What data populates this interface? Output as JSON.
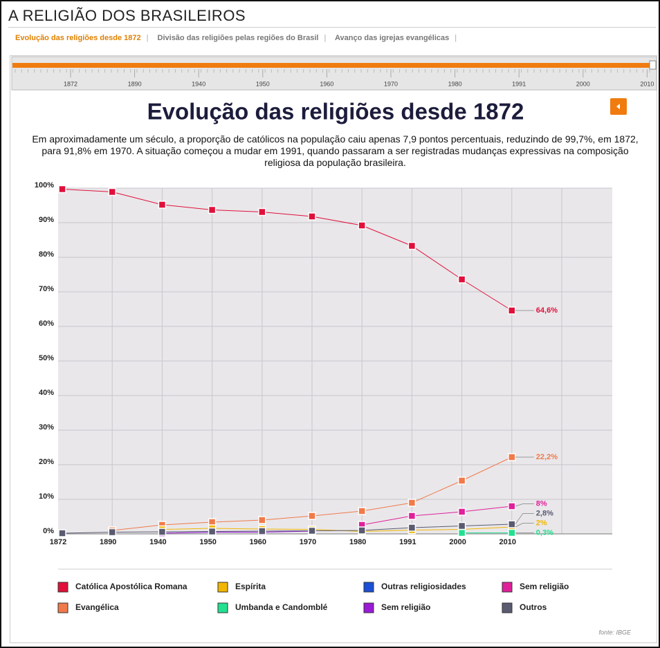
{
  "header": {
    "title": "A RELIGIÃO DOS BRASILEIROS",
    "tabs": [
      "Evolução das religiões desde 1872",
      "Divisão das religiões pelas regiões do Brasil",
      "Avanço das igrejas evangélicas"
    ]
  },
  "timeline": {
    "labels": [
      "1872",
      "1890",
      "1940",
      "1950",
      "1960",
      "1970",
      "1980",
      "1991",
      "2000",
      "2010"
    ]
  },
  "chart_data": {
    "type": "line",
    "title": "Evolução das religiões desde 1872",
    "subtitle": "Em aproximadamente um século, a proporção de católicos na população caiu apenas 7,9 pontos percentuais, reduzindo de 99,7%, em 1872, para 91,8% em 1970. A situação começou a mudar em 1991, quando passaram a ser registradas mudanças expressivas na composição religiosa da população brasileira.",
    "categories": [
      "1872",
      "1890",
      "1940",
      "1950",
      "1960",
      "1970",
      "1980",
      "1991",
      "2000",
      "2010"
    ],
    "ylim": [
      0,
      100
    ],
    "yticks": [
      {
        "value": 0,
        "label": "0%"
      },
      {
        "value": 10,
        "label": "10%"
      },
      {
        "value": 20,
        "label": "20%"
      },
      {
        "value": 30,
        "label": "30%"
      },
      {
        "value": 40,
        "label": "40%"
      },
      {
        "value": 50,
        "label": "50%"
      },
      {
        "value": 60,
        "label": "60%"
      },
      {
        "value": 70,
        "label": "70%"
      },
      {
        "value": 80,
        "label": "80%"
      },
      {
        "value": 90,
        "label": "90%"
      },
      {
        "value": 100,
        "label": "100%"
      }
    ],
    "grid": true,
    "series": [
      {
        "name": "Católica Apostólica Romana",
        "color": "#e0103a",
        "values": [
          99.7,
          98.9,
          95.2,
          93.7,
          93.1,
          91.8,
          89.2,
          83.3,
          73.6,
          64.6
        ],
        "value_labels": [
          null,
          null,
          null,
          null,
          null,
          null,
          null,
          null,
          null,
          "64,6%"
        ]
      },
      {
        "name": "Evangélica",
        "color": "#f07a4a",
        "values": [
          null,
          1.0,
          2.6,
          3.4,
          4.0,
          5.2,
          6.6,
          9.0,
          15.4,
          22.2
        ],
        "value_labels": [
          null,
          null,
          null,
          null,
          null,
          null,
          null,
          null,
          null,
          "22,2%"
        ]
      },
      {
        "name": "Espírita",
        "color": "#f2b600",
        "values": [
          null,
          null,
          1.3,
          1.6,
          1.4,
          1.3,
          0.7,
          1.1,
          1.3,
          2
        ],
        "value_labels": [
          null,
          null,
          null,
          null,
          null,
          null,
          null,
          null,
          null,
          "2%"
        ]
      },
      {
        "name": "Umbanda e Candomblé",
        "color": "#22e090",
        "values": [
          null,
          null,
          null,
          null,
          null,
          null,
          null,
          null,
          0.3,
          0.3
        ],
        "value_labels": [
          null,
          null,
          null,
          null,
          null,
          null,
          null,
          null,
          null,
          "0,3%"
        ]
      },
      {
        "name": "Outras religiosidades",
        "color": "#1a4fd6",
        "values": [
          null,
          null,
          null,
          null,
          null,
          null,
          null,
          null,
          null,
          null
        ]
      },
      {
        "name": "Sem religião",
        "color": "#9a1ad6",
        "values": [
          null,
          null,
          0.2,
          0.5,
          0.5,
          0.8,
          null,
          null,
          null,
          null
        ]
      },
      {
        "name": "Sem religião",
        "color": "#e0209a",
        "values": [
          null,
          null,
          null,
          null,
          null,
          null,
          2.6,
          5.2,
          6.4,
          8
        ],
        "value_labels": [
          null,
          null,
          null,
          null,
          null,
          null,
          null,
          null,
          null,
          "8%"
        ]
      },
      {
        "name": "Outros",
        "color": "#5a5a70",
        "values": [
          0.2,
          0.5,
          0.6,
          0.7,
          0.8,
          0.9,
          1.0,
          1.8,
          2.3,
          2.8
        ],
        "value_labels": [
          null,
          null,
          null,
          null,
          null,
          null,
          null,
          null,
          null,
          "2,8%"
        ]
      }
    ],
    "source": "fonte: IBGE"
  }
}
